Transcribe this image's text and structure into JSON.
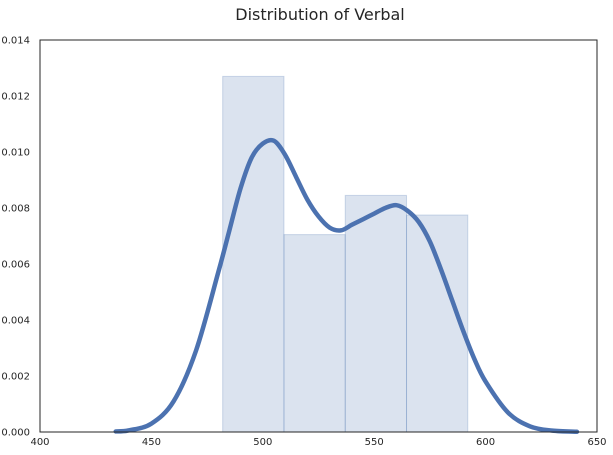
{
  "chart_data": {
    "type": "histogram",
    "title": "Distribution of Verbal",
    "xlabel": "",
    "ylabel": "",
    "xlim": [
      400,
      650
    ],
    "ylim": [
      0,
      0.014
    ],
    "x_ticks": [
      400,
      450,
      500,
      550,
      600,
      650
    ],
    "y_ticks": [
      0.0,
      0.002,
      0.004,
      0.006,
      0.008,
      0.01,
      0.012,
      0.014
    ],
    "y_tick_labels": [
      "0.000",
      "0.002",
      "0.004",
      "0.006",
      "0.008",
      "0.010",
      "0.012",
      "0.014"
    ],
    "grid": false,
    "bins": [
      {
        "x0": 482,
        "x1": 509.5,
        "density": 0.0127
      },
      {
        "x0": 509.5,
        "x1": 537,
        "density": 0.00705
      },
      {
        "x0": 537,
        "x1": 564.5,
        "density": 0.00845
      },
      {
        "x0": 564.5,
        "x1": 592,
        "density": 0.00775
      }
    ],
    "kde": {
      "x": [
        434,
        440,
        450,
        460,
        470,
        480,
        485,
        490,
        495,
        500,
        505,
        510,
        515,
        520,
        525,
        530,
        535,
        540,
        545,
        550,
        555,
        560,
        565,
        570,
        575,
        580,
        585,
        590,
        595,
        600,
        610,
        620,
        630,
        641
      ],
      "y": [
        2e-05,
        6e-05,
        0.0003,
        0.0011,
        0.0029,
        0.0057,
        0.0072,
        0.0087,
        0.0098,
        0.0103,
        0.0104,
        0.0099,
        0.0091,
        0.0083,
        0.0077,
        0.0073,
        0.0072,
        0.0074,
        0.0076,
        0.0078,
        0.008,
        0.0081,
        0.0079,
        0.0075,
        0.0068,
        0.0058,
        0.0047,
        0.0036,
        0.0026,
        0.0018,
        0.0007,
        0.0002,
        5e-05,
        1e-05
      ]
    },
    "colors": {
      "bar_fill": "#4c72b0",
      "bar_opacity": 0.2,
      "kde_line": "#4c72b0",
      "axes_edge": "#262626",
      "background": "#ffffff"
    }
  }
}
